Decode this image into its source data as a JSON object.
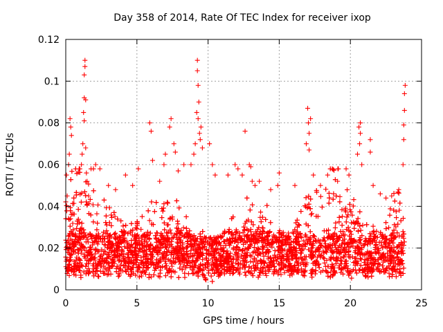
{
  "chart_data": {
    "type": "scatter",
    "title": "Day 358 of 2014, Rate Of TEC Index for receiver ixop",
    "xlabel": "GPS time / hours",
    "ylabel": "ROTI / TECUs",
    "xlim": [
      0,
      25
    ],
    "ylim": [
      0,
      0.12
    ],
    "xticks": [
      "0",
      "5",
      "10",
      "15",
      "20",
      "25"
    ],
    "yticks": [
      "0",
      "0.02",
      "0.04",
      "0.06",
      "0.08",
      "0.1",
      "0.12"
    ],
    "xtick_values": [
      0,
      5,
      10,
      15,
      20,
      25
    ],
    "ytick_values": [
      0,
      0.02,
      0.04,
      0.06,
      0.08,
      0.1,
      0.12
    ],
    "grid": true,
    "marker": "+",
    "series_color": "#ff0000",
    "series": [
      {
        "name": "ROTI",
        "description": "dense band of points roughly 0.005–0.035 TECU spanning 0–23.8 h, with spikes listed below",
        "x": [
          0.05,
          0.1,
          0.2,
          0.25,
          0.3,
          0.35,
          0.4,
          1.1,
          1.15,
          1.2,
          1.25,
          1.3,
          1.3,
          1.35,
          1.35,
          1.4,
          1.4,
          1.45,
          1.3,
          1.5,
          1.6,
          2.1,
          2.4,
          3.0,
          3.5,
          4.2,
          4.7,
          5.1,
          5.9,
          6.0,
          6.1,
          6.6,
          6.9,
          7.0,
          7.3,
          7.4,
          7.6,
          7.7,
          7.9,
          8.3,
          8.8,
          9.0,
          9.1,
          9.2,
          9.25,
          9.25,
          9.3,
          9.3,
          9.35,
          9.4,
          9.45,
          9.5,
          9.6,
          10.1,
          10.3,
          10.5,
          11.4,
          11.9,
          12.1,
          12.4,
          12.6,
          12.9,
          13.0,
          13.1,
          13.3,
          13.6,
          14.4,
          14.9,
          15.0,
          16.1,
          16.9,
          17.0,
          17.05,
          17.1,
          17.1,
          17.2,
          17.4,
          17.9,
          18.4,
          19.1,
          19.7,
          19.9,
          20.5,
          20.6,
          20.65,
          20.7,
          20.7,
          20.8,
          21.4,
          21.4,
          21.6,
          22.1,
          22.5,
          22.9,
          23.4,
          23.7,
          23.75,
          23.75,
          23.8,
          23.8,
          23.85
        ],
        "y": [
          0.055,
          0.045,
          0.06,
          0.065,
          0.082,
          0.078,
          0.074,
          0.06,
          0.065,
          0.07,
          0.085,
          0.092,
          0.103,
          0.107,
          0.11,
          0.091,
          0.068,
          0.056,
          0.081,
          0.052,
          0.045,
          0.06,
          0.058,
          0.05,
          0.048,
          0.055,
          0.05,
          0.058,
          0.08,
          0.076,
          0.062,
          0.052,
          0.06,
          0.065,
          0.078,
          0.082,
          0.07,
          0.066,
          0.057,
          0.06,
          0.06,
          0.065,
          0.07,
          0.085,
          0.105,
          0.11,
          0.098,
          0.082,
          0.09,
          0.075,
          0.072,
          0.078,
          0.068,
          0.07,
          0.06,
          0.055,
          0.055,
          0.06,
          0.058,
          0.055,
          0.076,
          0.06,
          0.059,
          0.052,
          0.05,
          0.052,
          0.048,
          0.05,
          0.056,
          0.05,
          0.07,
          0.087,
          0.08,
          0.075,
          0.067,
          0.082,
          0.055,
          0.05,
          0.055,
          0.052,
          0.058,
          0.055,
          0.065,
          0.078,
          0.07,
          0.075,
          0.08,
          0.06,
          0.072,
          0.066,
          0.05,
          0.046,
          0.044,
          0.045,
          0.048,
          0.06,
          0.072,
          0.079,
          0.086,
          0.094,
          0.098
        ]
      }
    ]
  }
}
